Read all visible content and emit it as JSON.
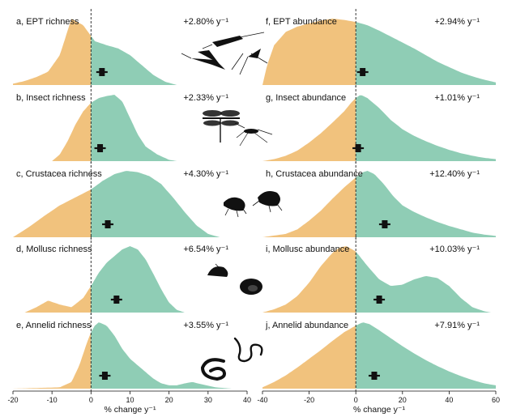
{
  "chart_data": {
    "type": "area",
    "colors": {
      "negative": "#f1c27d",
      "positive": "#8fcdb5",
      "marker": "#111111"
    },
    "xlabel": "% change y⁻¹",
    "columns": [
      {
        "xlim": [
          -20,
          40
        ],
        "ticks": [
          -20,
          -10,
          0,
          10,
          20,
          30,
          40
        ]
      },
      {
        "xlim": [
          -40,
          60
        ],
        "ticks": [
          -40,
          -20,
          0,
          20,
          40,
          60
        ]
      }
    ],
    "panels": [
      {
        "label": "a, EPT richness",
        "rate": "+2.80% y⁻¹",
        "col": 0,
        "row": 0,
        "mean": 2.8,
        "density": [
          [
            -20,
            0.02
          ],
          [
            -17,
            0.06
          ],
          [
            -14,
            0.12
          ],
          [
            -11,
            0.2
          ],
          [
            -8,
            0.45
          ],
          [
            -5,
            1.0
          ],
          [
            -2,
            0.9
          ],
          [
            1,
            0.66
          ],
          [
            4,
            0.6
          ],
          [
            7,
            0.55
          ],
          [
            10,
            0.45
          ],
          [
            13,
            0.3
          ],
          [
            16,
            0.15
          ],
          [
            19,
            0.05
          ],
          [
            22,
            0.0
          ]
        ]
      },
      {
        "label": "b, Insect richness",
        "rate": "+2.33% y⁻¹",
        "col": 0,
        "row": 1,
        "mean": 2.33,
        "density": [
          [
            -10,
            0.0
          ],
          [
            -8,
            0.1
          ],
          [
            -6,
            0.3
          ],
          [
            -4,
            0.55
          ],
          [
            -2,
            0.75
          ],
          [
            0,
            0.88
          ],
          [
            2,
            0.95
          ],
          [
            4,
            0.98
          ],
          [
            6,
            1.0
          ],
          [
            8,
            0.9
          ],
          [
            10,
            0.65
          ],
          [
            12,
            0.4
          ],
          [
            14,
            0.22
          ],
          [
            17,
            0.1
          ],
          [
            20,
            0.02
          ],
          [
            22,
            0.0
          ]
        ]
      },
      {
        "label": "c, Crustacea richness",
        "rate": "+4.30% y⁻¹",
        "col": 0,
        "row": 2,
        "mean": 4.3,
        "density": [
          [
            -20,
            0.0
          ],
          [
            -16,
            0.15
          ],
          [
            -12,
            0.32
          ],
          [
            -8,
            0.48
          ],
          [
            -4,
            0.6
          ],
          [
            0,
            0.72
          ],
          [
            3,
            0.85
          ],
          [
            6,
            0.95
          ],
          [
            9,
            1.0
          ],
          [
            12,
            0.98
          ],
          [
            15,
            0.92
          ],
          [
            18,
            0.8
          ],
          [
            21,
            0.6
          ],
          [
            24,
            0.38
          ],
          [
            27,
            0.18
          ],
          [
            30,
            0.05
          ],
          [
            33,
            0.0
          ]
        ]
      },
      {
        "label": "d, Mollusc richness",
        "rate": "+6.54% y⁻¹",
        "col": 0,
        "row": 3,
        "mean": 6.54,
        "density": [
          [
            -17,
            0.0
          ],
          [
            -14,
            0.08
          ],
          [
            -11,
            0.18
          ],
          [
            -8,
            0.12
          ],
          [
            -5,
            0.08
          ],
          [
            -2,
            0.22
          ],
          [
            0,
            0.4
          ],
          [
            2,
            0.6
          ],
          [
            4,
            0.75
          ],
          [
            6,
            0.85
          ],
          [
            8,
            0.95
          ],
          [
            10,
            1.0
          ],
          [
            12,
            0.95
          ],
          [
            14,
            0.8
          ],
          [
            16,
            0.58
          ],
          [
            18,
            0.35
          ],
          [
            20,
            0.15
          ],
          [
            22,
            0.04
          ],
          [
            24,
            0.0
          ]
        ]
      },
      {
        "label": "e, Annelid richness",
        "rate": "+3.55% y⁻¹",
        "col": 0,
        "row": 4,
        "mean": 3.55,
        "density": [
          [
            -20,
            0.0
          ],
          [
            -8,
            0.02
          ],
          [
            -5,
            0.1
          ],
          [
            -3,
            0.35
          ],
          [
            -1,
            0.7
          ],
          [
            0,
            0.85
          ],
          [
            1,
            0.95
          ],
          [
            2,
            1.0
          ],
          [
            4,
            0.95
          ],
          [
            6,
            0.8
          ],
          [
            8,
            0.6
          ],
          [
            10,
            0.45
          ],
          [
            12,
            0.35
          ],
          [
            14,
            0.25
          ],
          [
            16,
            0.15
          ],
          [
            18,
            0.08
          ],
          [
            20,
            0.05
          ],
          [
            22,
            0.05
          ],
          [
            24,
            0.08
          ],
          [
            26,
            0.1
          ],
          [
            28,
            0.07
          ],
          [
            32,
            0.02
          ],
          [
            36,
            0.0
          ]
        ]
      },
      {
        "label": "f, EPT abundance",
        "rate": "+2.94% y⁻¹",
        "col": 1,
        "row": 0,
        "mean": 2.94,
        "density": [
          [
            -40,
            0.0
          ],
          [
            -38,
            0.3
          ],
          [
            -35,
            0.6
          ],
          [
            -30,
            0.8
          ],
          [
            -25,
            0.88
          ],
          [
            -20,
            0.93
          ],
          [
            -15,
            0.97
          ],
          [
            -10,
            1.0
          ],
          [
            -5,
            0.98
          ],
          [
            0,
            0.95
          ],
          [
            5,
            0.9
          ],
          [
            10,
            0.82
          ],
          [
            15,
            0.73
          ],
          [
            20,
            0.64
          ],
          [
            25,
            0.55
          ],
          [
            30,
            0.45
          ],
          [
            35,
            0.35
          ],
          [
            40,
            0.27
          ],
          [
            45,
            0.19
          ],
          [
            50,
            0.13
          ],
          [
            55,
            0.08
          ],
          [
            60,
            0.04
          ]
        ]
      },
      {
        "label": "g, Insect abundance",
        "rate": "+1.01% y⁻¹",
        "col": 1,
        "row": 1,
        "mean": 1.01,
        "density": [
          [
            -40,
            0.0
          ],
          [
            -35,
            0.03
          ],
          [
            -30,
            0.08
          ],
          [
            -25,
            0.16
          ],
          [
            -20,
            0.28
          ],
          [
            -15,
            0.42
          ],
          [
            -10,
            0.58
          ],
          [
            -5,
            0.75
          ],
          [
            -2,
            0.88
          ],
          [
            0,
            0.95
          ],
          [
            2,
            1.0
          ],
          [
            5,
            0.95
          ],
          [
            10,
            0.8
          ],
          [
            15,
            0.62
          ],
          [
            20,
            0.48
          ],
          [
            25,
            0.38
          ],
          [
            30,
            0.3
          ],
          [
            35,
            0.23
          ],
          [
            40,
            0.17
          ],
          [
            45,
            0.12
          ],
          [
            50,
            0.08
          ],
          [
            55,
            0.05
          ],
          [
            60,
            0.03
          ]
        ]
      },
      {
        "label": "h, Crustacea abundance",
        "rate": "+12.40% y⁻¹",
        "col": 1,
        "row": 2,
        "mean": 12.4,
        "density": [
          [
            -40,
            0.0
          ],
          [
            -30,
            0.05
          ],
          [
            -25,
            0.12
          ],
          [
            -20,
            0.25
          ],
          [
            -15,
            0.4
          ],
          [
            -10,
            0.58
          ],
          [
            -5,
            0.75
          ],
          [
            0,
            0.9
          ],
          [
            3,
            0.98
          ],
          [
            5,
            1.0
          ],
          [
            8,
            0.95
          ],
          [
            12,
            0.8
          ],
          [
            16,
            0.62
          ],
          [
            20,
            0.48
          ],
          [
            25,
            0.38
          ],
          [
            30,
            0.3
          ],
          [
            35,
            0.23
          ],
          [
            40,
            0.17
          ],
          [
            45,
            0.12
          ],
          [
            50,
            0.07
          ],
          [
            55,
            0.04
          ],
          [
            60,
            0.02
          ]
        ]
      },
      {
        "label": "i, Mollusc abundance",
        "rate": "+10.03% y⁻¹",
        "col": 1,
        "row": 3,
        "mean": 10.03,
        "density": [
          [
            -40,
            0.0
          ],
          [
            -35,
            0.05
          ],
          [
            -30,
            0.12
          ],
          [
            -25,
            0.25
          ],
          [
            -20,
            0.45
          ],
          [
            -15,
            0.7
          ],
          [
            -10,
            0.9
          ],
          [
            -7,
            0.98
          ],
          [
            -4,
            1.0
          ],
          [
            0,
            0.92
          ],
          [
            5,
            0.7
          ],
          [
            10,
            0.5
          ],
          [
            15,
            0.4
          ],
          [
            20,
            0.42
          ],
          [
            25,
            0.5
          ],
          [
            30,
            0.55
          ],
          [
            35,
            0.52
          ],
          [
            40,
            0.4
          ],
          [
            45,
            0.22
          ],
          [
            50,
            0.08
          ],
          [
            55,
            0.02
          ],
          [
            58,
            0.0
          ]
        ]
      },
      {
        "label": "j, Annelid abundance",
        "rate": "+7.91% y⁻¹",
        "col": 1,
        "row": 4,
        "mean": 7.91,
        "density": [
          [
            -40,
            0.02
          ],
          [
            -35,
            0.1
          ],
          [
            -30,
            0.2
          ],
          [
            -25,
            0.32
          ],
          [
            -20,
            0.45
          ],
          [
            -15,
            0.58
          ],
          [
            -10,
            0.72
          ],
          [
            -5,
            0.85
          ],
          [
            0,
            0.95
          ],
          [
            3,
            1.0
          ],
          [
            6,
            0.97
          ],
          [
            10,
            0.88
          ],
          [
            15,
            0.76
          ],
          [
            20,
            0.64
          ],
          [
            25,
            0.53
          ],
          [
            30,
            0.43
          ],
          [
            35,
            0.34
          ],
          [
            40,
            0.26
          ],
          [
            45,
            0.19
          ],
          [
            50,
            0.13
          ],
          [
            55,
            0.08
          ],
          [
            60,
            0.05
          ]
        ]
      }
    ]
  }
}
